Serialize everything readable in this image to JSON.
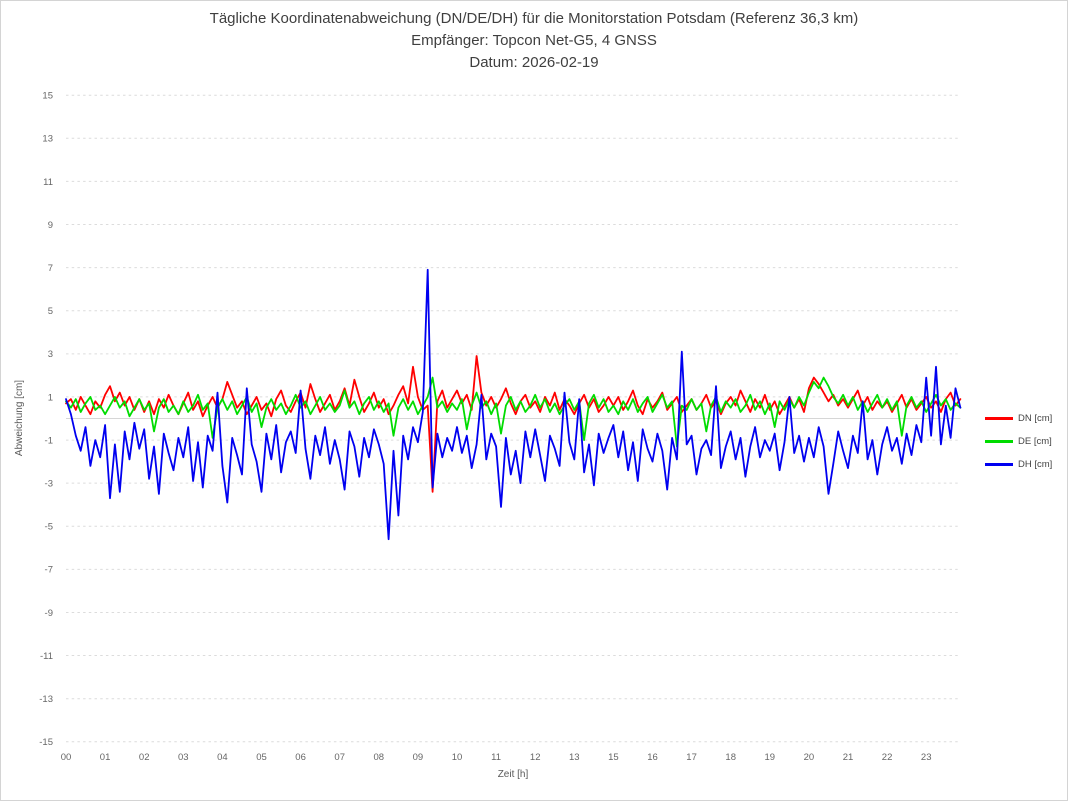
{
  "chart_data": {
    "type": "line",
    "title_lines": [
      "Tägliche Koordinatenabweichung (DN/DE/DH) für die Monitorstation Potsdam (Referenz 36,3 km)",
      "Empfänger: Topcon Net-G5, 4 GNSS",
      "Datum: 2026-02-19"
    ],
    "xlabel": "Zeit [h]",
    "ylabel": "Abweichung [cm]",
    "ylim": [
      -15,
      15
    ],
    "y_ticks": [
      -15,
      -13,
      -11,
      -9,
      -7,
      -5,
      -3,
      -1,
      1,
      3,
      5,
      7,
      9,
      11,
      13,
      15
    ],
    "x_tick_labels": [
      "00",
      "01",
      "02",
      "03",
      "04",
      "05",
      "06",
      "07",
      "08",
      "09",
      "10",
      "11",
      "12",
      "13",
      "15",
      "16",
      "17",
      "18",
      "19",
      "20",
      "21",
      "22",
      "23"
    ],
    "x_axis_hour_14_absent": true,
    "samples_per_hour": 8,
    "grid": "horizontal dashed at odd values, solid light line at 0, no vertical gridlines",
    "legend_position": "right center",
    "series": [
      {
        "name": "DN [cm]",
        "color": "#ff0000",
        "values": [
          0.7,
          0.9,
          0.4,
          1.0,
          0.6,
          0.2,
          0.8,
          0.5,
          1.1,
          1.5,
          0.8,
          1.2,
          0.6,
          1.0,
          0.4,
          0.9,
          0.3,
          0.8,
          0.2,
          0.9,
          0.5,
          1.1,
          0.6,
          0.2,
          0.7,
          1.2,
          0.4,
          0.8,
          0.1,
          0.6,
          1.0,
          0.5,
          0.9,
          1.7,
          1.1,
          0.5,
          0.8,
          0.2,
          0.6,
          1.0,
          0.4,
          0.7,
          0.1,
          0.9,
          1.3,
          0.6,
          0.3,
          0.8,
          1.2,
          0.5,
          1.6,
          0.9,
          0.3,
          0.7,
          1.1,
          0.4,
          0.8,
          1.4,
          0.6,
          1.8,
          1.0,
          0.3,
          0.7,
          1.2,
          0.5,
          0.9,
          0.2,
          0.6,
          1.1,
          1.5,
          0.7,
          2.4,
          1.0,
          0.4,
          0.6,
          -3.4,
          0.8,
          1.3,
          0.5,
          0.9,
          1.3,
          0.7,
          1.1,
          0.4,
          2.9,
          1.2,
          0.6,
          1.0,
          0.5,
          0.9,
          1.4,
          0.7,
          0.2,
          0.8,
          1.1,
          0.5,
          0.8,
          0.3,
          1.0,
          0.6,
          1.2,
          0.4,
          0.9,
          0.6,
          0.2,
          0.7,
          1.1,
          0.5,
          0.9,
          0.3,
          0.6,
          1.0,
          0.6,
          1.0,
          0.4,
          0.8,
          1.3,
          0.6,
          0.2,
          0.9,
          0.5,
          0.8,
          1.2,
          0.4,
          0.7,
          1.0,
          0.3,
          0.6,
          0.9,
          0.4,
          0.7,
          1.1,
          0.5,
          0.8,
          0.2,
          0.7,
          1.0,
          0.6,
          1.3,
          0.8,
          0.3,
          0.9,
          0.5,
          1.1,
          0.4,
          0.8,
          0.2,
          0.6,
          1.0,
          0.5,
          0.9,
          0.3,
          1.4,
          1.9,
          1.6,
          1.2,
          0.8,
          1.1,
          0.6,
          0.9,
          0.5,
          0.9,
          1.3,
          0.6,
          1.0,
          0.4,
          0.8,
          0.5,
          0.8,
          0.3,
          0.7,
          1.1,
          0.5,
          0.9,
          0.4,
          0.7,
          1.0,
          0.5,
          0.8,
          0.3,
          0.9,
          1.2,
          0.6,
          0.9
        ]
      },
      {
        "name": "DE [cm]",
        "color": "#00dc00",
        "values": [
          0.8,
          0.5,
          0.9,
          0.3,
          0.7,
          1.0,
          0.4,
          0.6,
          0.2,
          0.6,
          1.0,
          0.5,
          0.8,
          0.1,
          0.5,
          0.9,
          0.4,
          0.7,
          -0.6,
          0.5,
          0.9,
          0.3,
          0.6,
          0.2,
          0.8,
          0.3,
          0.6,
          1.1,
          0.4,
          0.7,
          -0.9,
          0.5,
          0.9,
          0.4,
          0.8,
          0.2,
          0.6,
          1.0,
          0.3,
          0.7,
          -0.4,
          0.5,
          0.9,
          0.4,
          0.7,
          0.2,
          0.6,
          1.1,
          0.5,
          0.8,
          0.2,
          0.6,
          1.0,
          0.4,
          0.7,
          0.3,
          0.6,
          1.3,
          0.5,
          0.8,
          0.2,
          0.7,
          1.0,
          0.4,
          0.8,
          0.3,
          0.7,
          -0.8,
          0.5,
          0.9,
          0.4,
          0.8,
          0.2,
          0.6,
          1.0,
          1.9,
          0.5,
          0.8,
          0.3,
          0.7,
          0.4,
          0.9,
          -0.5,
          0.6,
          1.2,
          0.5,
          0.8,
          0.2,
          0.7,
          -0.7,
          0.6,
          1.0,
          0.4,
          0.8,
          0.3,
          0.6,
          1.1,
          0.5,
          0.9,
          0.3,
          0.7,
          0.2,
          0.6,
          0.9,
          0.4,
          0.8,
          -1.0,
          0.7,
          1.1,
          0.5,
          0.9,
          0.3,
          0.6,
          0.2,
          0.8,
          0.4,
          0.9,
          0.3,
          0.7,
          1.0,
          0.3,
          0.7,
          1.1,
          0.5,
          0.8,
          -1.3,
          0.6,
          0.4,
          0.9,
          0.4,
          0.7,
          -0.6,
          0.6,
          1.0,
          0.3,
          0.8,
          0.5,
          0.9,
          0.3,
          0.6,
          1.1,
          0.4,
          0.8,
          0.2,
          0.7,
          -0.4,
          0.8,
          0.4,
          0.9,
          0.5,
          1.0,
          0.6,
          1.2,
          1.7,
          1.4,
          1.9,
          1.5,
          1.0,
          0.7,
          1.1,
          0.6,
          1.0,
          0.4,
          0.8,
          0.3,
          0.7,
          1.1,
          0.5,
          0.9,
          0.4,
          0.8,
          -0.8,
          0.6,
          1.0,
          0.5,
          0.8,
          0.3,
          0.7,
          1.1,
          0.6,
          0.9,
          0.4,
          0.7,
          0.5
        ]
      },
      {
        "name": "DH [cm]",
        "color": "#0000f0",
        "values": [
          0.9,
          0.2,
          -0.8,
          -1.5,
          -0.4,
          -2.2,
          -1.0,
          -1.8,
          -0.3,
          -3.7,
          -1.2,
          -3.4,
          -0.6,
          -1.9,
          -0.2,
          -1.4,
          -0.5,
          -2.8,
          -1.3,
          -3.5,
          -0.7,
          -1.6,
          -2.4,
          -0.9,
          -1.8,
          -0.4,
          -2.9,
          -1.1,
          -3.2,
          -0.8,
          -1.5,
          1.2,
          -2.2,
          -3.9,
          -0.9,
          -1.7,
          -2.6,
          1.4,
          -1.2,
          -2.0,
          -3.4,
          -0.7,
          -1.9,
          -0.3,
          -2.5,
          -1.1,
          -0.6,
          -1.6,
          1.3,
          -1.4,
          -2.8,
          -0.8,
          -1.7,
          -0.4,
          -2.1,
          -1.0,
          -1.9,
          -3.3,
          -0.6,
          -1.3,
          -2.7,
          -0.9,
          -1.8,
          -0.5,
          -1.2,
          -2.1,
          -5.6,
          -1.5,
          -4.5,
          -0.8,
          -1.9,
          -0.4,
          -1.1,
          0.3,
          6.9,
          -3.2,
          -0.7,
          -1.8,
          -0.9,
          -1.5,
          -0.4,
          -1.6,
          -0.8,
          -2.3,
          -1.2,
          1.1,
          -1.9,
          -0.7,
          -1.3,
          -4.1,
          -0.9,
          -2.6,
          -1.5,
          -3.0,
          -0.6,
          -1.8,
          -0.5,
          -1.7,
          -2.9,
          -0.8,
          -1.4,
          -2.2,
          1.2,
          -1.1,
          -1.9,
          0.9,
          -2.5,
          -1.2,
          -3.1,
          -0.7,
          -1.6,
          -0.9,
          -0.3,
          -1.8,
          -0.6,
          -2.4,
          -1.1,
          -2.9,
          -0.5,
          -1.4,
          -2.0,
          -0.7,
          -1.5,
          -3.3,
          -0.9,
          -1.9,
          3.1,
          -1.2,
          -0.8,
          -2.6,
          -1.4,
          -1.0,
          -1.7,
          1.5,
          -2.3,
          -1.3,
          -0.6,
          -1.9,
          -0.9,
          -2.7,
          -1.3,
          -0.4,
          -1.8,
          -1.0,
          -1.5,
          -0.7,
          -2.4,
          -1.1,
          1.0,
          -1.6,
          -0.8,
          -2.0,
          -0.9,
          -1.8,
          -0.4,
          -1.3,
          -3.5,
          -2.1,
          -0.6,
          -1.5,
          -2.3,
          -0.8,
          -1.6,
          0.8,
          -1.9,
          -1.0,
          -2.6,
          -1.2,
          -0.4,
          -1.5,
          -0.9,
          -2.1,
          -0.7,
          -1.7,
          -0.3,
          -1.1,
          1.9,
          -0.8,
          2.4,
          -1.2,
          0.6,
          -0.9,
          1.4,
          0.5
        ]
      }
    ]
  }
}
